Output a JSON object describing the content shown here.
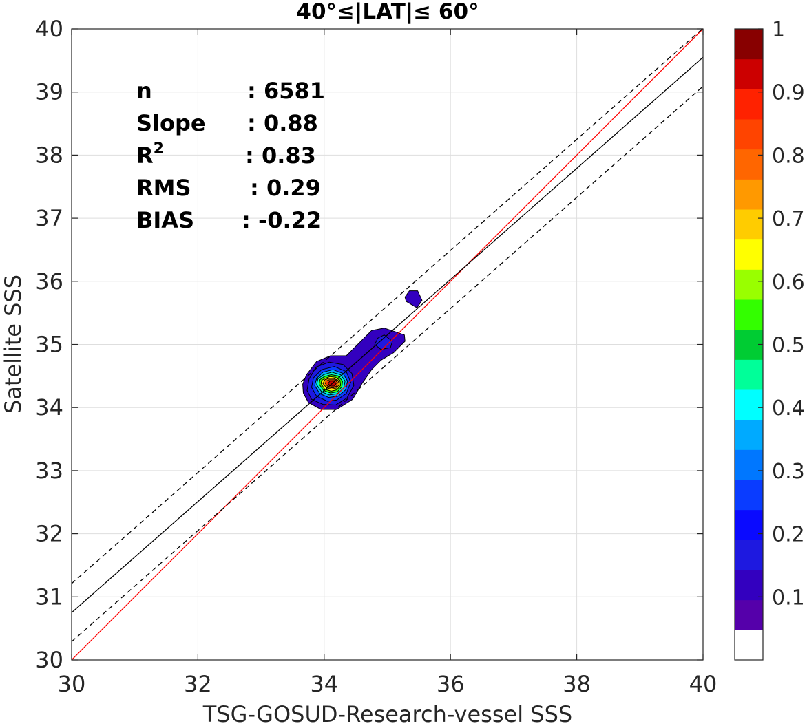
{
  "chart_data": {
    "type": "contour-scatter",
    "title": "40°≤|LAT|≤ 60°",
    "xlabel": "TSG-GOSUD-Research-vessel SSS",
    "ylabel": "Satellite SSS",
    "xlim": [
      30,
      40
    ],
    "ylim": [
      30,
      40
    ],
    "xticks": [
      "30",
      "32",
      "34",
      "36",
      "38",
      "40"
    ],
    "yticks": [
      "30",
      "31",
      "32",
      "33",
      "34",
      "35",
      "36",
      "37",
      "38",
      "39",
      "40"
    ],
    "grid": true,
    "stats": [
      {
        "label": "n",
        "value": ": 6581"
      },
      {
        "label": "Slope",
        "value": ": 0.88"
      },
      {
        "label": "R",
        "sup": "2",
        "value": ": 0.83"
      },
      {
        "label": "RMS",
        "value": ": 0.29"
      },
      {
        "label": "BIAS",
        "value": ": -0.22"
      }
    ],
    "lines": [
      {
        "name": "one-to-one",
        "color": "#ff0000",
        "style": "solid",
        "x": [
          30,
          40
        ],
        "y": [
          30,
          40
        ]
      },
      {
        "name": "regression-fit",
        "color": "#000000",
        "style": "solid",
        "x": [
          30,
          40
        ],
        "y": [
          30.75,
          39.55
        ]
      },
      {
        "name": "fit-upper-bound",
        "color": "#000000",
        "style": "dashed",
        "x": [
          30,
          40
        ],
        "y": [
          31.21,
          40.01
        ]
      },
      {
        "name": "fit-lower-bound",
        "color": "#000000",
        "style": "dashed",
        "x": [
          30,
          40
        ],
        "y": [
          30.29,
          39.09
        ]
      }
    ],
    "density_peak": {
      "x": 34.15,
      "y": 34.4,
      "value": 1.0
    },
    "contour_levels": [
      0.05,
      0.1,
      0.15,
      0.2,
      0.25,
      0.3,
      0.35,
      0.4,
      0.45,
      0.5,
      0.55,
      0.6,
      0.65,
      0.7,
      0.75,
      0.8,
      0.85,
      0.9,
      0.95,
      1.0
    ],
    "contours": [
      {
        "level": 0.05,
        "color": "#3300bf",
        "points": [
          [
            33.67,
            34.23
          ],
          [
            33.75,
            34.08
          ],
          [
            33.95,
            33.97
          ],
          [
            34.2,
            33.97
          ],
          [
            34.45,
            34.13
          ],
          [
            34.6,
            34.38
          ],
          [
            34.75,
            34.6
          ],
          [
            34.9,
            34.75
          ],
          [
            35.1,
            34.87
          ],
          [
            35.28,
            35.05
          ],
          [
            35.27,
            35.15
          ],
          [
            35.13,
            35.2
          ],
          [
            34.95,
            35.26
          ],
          [
            34.75,
            35.22
          ],
          [
            34.55,
            35.02
          ],
          [
            34.35,
            34.82
          ],
          [
            34.1,
            34.82
          ],
          [
            33.88,
            34.73
          ],
          [
            33.72,
            34.52
          ],
          [
            33.66,
            34.37
          ]
        ]
      },
      {
        "level": 0.05,
        "color": "#3300bf",
        "points": [
          [
            35.3,
            35.68
          ],
          [
            35.47,
            35.58
          ],
          [
            35.55,
            35.7
          ],
          [
            35.48,
            35.85
          ],
          [
            35.35,
            35.85
          ],
          [
            35.28,
            35.75
          ]
        ]
      },
      {
        "level": 0.1,
        "color": "#1e19e0",
        "points": [
          [
            34.8,
            35.0
          ],
          [
            34.9,
            34.92
          ],
          [
            35.05,
            34.95
          ],
          [
            35.08,
            35.05
          ],
          [
            34.95,
            35.15
          ],
          [
            34.85,
            35.1
          ]
        ]
      },
      {
        "level": 0.1,
        "color": "#1e19e0",
        "points": [
          [
            33.73,
            34.27
          ],
          [
            33.8,
            34.13
          ],
          [
            33.98,
            34.05
          ],
          [
            34.18,
            34.04
          ],
          [
            34.36,
            34.15
          ],
          [
            34.47,
            34.35
          ],
          [
            34.44,
            34.54
          ],
          [
            34.3,
            34.68
          ],
          [
            34.08,
            34.72
          ],
          [
            33.87,
            34.64
          ],
          [
            33.76,
            34.45
          ]
        ]
      },
      {
        "level": 0.2,
        "color": "#0a3cff",
        "points": [
          [
            33.8,
            34.32
          ],
          [
            33.88,
            34.18
          ],
          [
            34.05,
            34.1
          ],
          [
            34.2,
            34.12
          ],
          [
            34.35,
            34.22
          ],
          [
            34.42,
            34.4
          ],
          [
            34.35,
            34.57
          ],
          [
            34.16,
            34.65
          ],
          [
            33.96,
            34.6
          ],
          [
            33.83,
            34.47
          ]
        ]
      },
      {
        "level": 0.3,
        "color": "#00aaff",
        "points": [
          [
            33.85,
            34.35
          ],
          [
            33.93,
            34.22
          ],
          [
            34.07,
            34.16
          ],
          [
            34.22,
            34.18
          ],
          [
            34.34,
            34.28
          ],
          [
            34.37,
            34.42
          ],
          [
            34.3,
            34.54
          ],
          [
            34.14,
            34.6
          ],
          [
            33.98,
            34.56
          ],
          [
            33.88,
            34.46
          ]
        ]
      },
      {
        "level": 0.4,
        "color": "#00ffcc",
        "points": [
          [
            33.88,
            34.36
          ],
          [
            33.96,
            34.25
          ],
          [
            34.08,
            34.2
          ],
          [
            34.21,
            34.22
          ],
          [
            34.31,
            34.31
          ],
          [
            34.33,
            34.42
          ],
          [
            34.26,
            34.52
          ],
          [
            34.12,
            34.56
          ],
          [
            33.99,
            34.52
          ],
          [
            33.9,
            34.45
          ]
        ]
      },
      {
        "level": 0.55,
        "color": "#33ff00",
        "points": [
          [
            33.92,
            34.37
          ],
          [
            33.99,
            34.27
          ],
          [
            34.1,
            34.23
          ],
          [
            34.21,
            34.25
          ],
          [
            34.28,
            34.33
          ],
          [
            34.29,
            34.42
          ],
          [
            34.22,
            34.5
          ],
          [
            34.11,
            34.52
          ],
          [
            34.0,
            34.49
          ],
          [
            33.93,
            34.44
          ]
        ]
      },
      {
        "level": 0.65,
        "color": "#ffff00",
        "points": [
          [
            33.95,
            34.38
          ],
          [
            34.01,
            34.29
          ],
          [
            34.11,
            34.26
          ],
          [
            34.2,
            34.28
          ],
          [
            34.26,
            34.35
          ],
          [
            34.25,
            34.43
          ],
          [
            34.18,
            34.48
          ],
          [
            34.09,
            34.49
          ],
          [
            34.01,
            34.46
          ],
          [
            33.96,
            34.43
          ]
        ]
      },
      {
        "level": 0.75,
        "color": "#ff9900",
        "points": [
          [
            33.98,
            34.38
          ],
          [
            34.04,
            34.31
          ],
          [
            34.12,
            34.29
          ],
          [
            34.2,
            34.31
          ],
          [
            34.24,
            34.37
          ],
          [
            34.22,
            34.43
          ],
          [
            34.15,
            34.46
          ],
          [
            34.07,
            34.46
          ],
          [
            34.01,
            34.44
          ]
        ]
      },
      {
        "level": 0.85,
        "color": "#ff4400",
        "points": [
          [
            34.02,
            34.38
          ],
          [
            34.07,
            34.32
          ],
          [
            34.14,
            34.31
          ],
          [
            34.2,
            34.34
          ],
          [
            34.21,
            34.4
          ],
          [
            34.16,
            34.44
          ],
          [
            34.08,
            34.44
          ],
          [
            34.03,
            34.42
          ]
        ]
      },
      {
        "level": 0.95,
        "color": "#cc0000",
        "points": [
          [
            34.06,
            34.38
          ],
          [
            34.1,
            34.34
          ],
          [
            34.16,
            34.34
          ],
          [
            34.19,
            34.38
          ],
          [
            34.16,
            34.42
          ],
          [
            34.09,
            34.42
          ]
        ]
      }
    ],
    "colorbar": {
      "ticks": [
        "0.1",
        "0.2",
        "0.3",
        "0.4",
        "0.5",
        "0.6",
        "0.7",
        "0.8",
        "0.9",
        "1"
      ],
      "tick_values": [
        0.1,
        0.2,
        0.3,
        0.4,
        0.5,
        0.6,
        0.7,
        0.8,
        0.9,
        1.0
      ],
      "range": [
        0,
        1
      ],
      "colors": [
        "#ffffff",
        "#5500aa",
        "#3300bf",
        "#1e19e0",
        "#0a0aff",
        "#0a3cff",
        "#0077ff",
        "#00aaff",
        "#00ffff",
        "#00ff99",
        "#00cc33",
        "#33ff00",
        "#99ff00",
        "#ffff00",
        "#ffcc00",
        "#ff9900",
        "#ff6600",
        "#ff4400",
        "#ff2200",
        "#cc0000",
        "#880000"
      ]
    }
  }
}
